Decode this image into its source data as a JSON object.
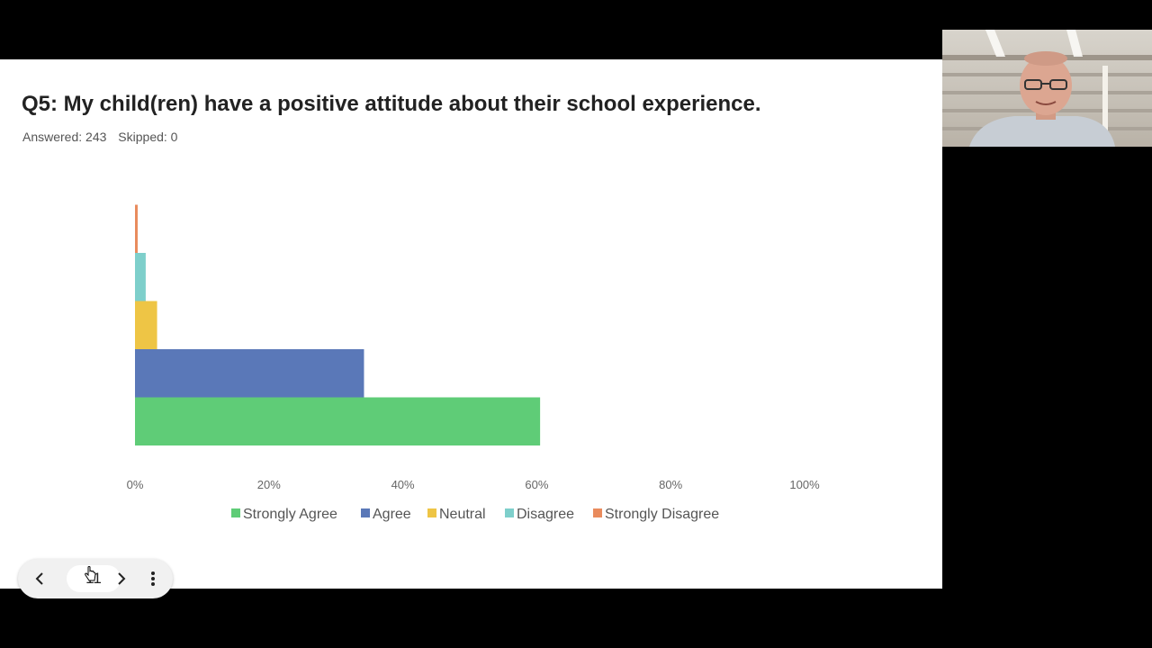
{
  "slide": {
    "title": "Q5: My child(ren) have a positive attitude about their school experience.",
    "answered": "Answered: 243",
    "skipped": "Skipped: 0"
  },
  "chart_data": {
    "type": "bar",
    "orientation": "horizontal",
    "categories": [
      "Strongly Agree",
      "Agree",
      "Neutral",
      "Disagree",
      "Strongly Disagree"
    ],
    "values": [
      60.5,
      34.2,
      3.3,
      1.6,
      0.4
    ],
    "xlim": [
      0,
      100
    ],
    "x_ticks": [
      "0%",
      "20%",
      "40%",
      "60%",
      "80%",
      "100%"
    ],
    "colors": [
      "#5fcc77",
      "#5a78b8",
      "#eec545",
      "#7ecfcb",
      "#e98b5d"
    ],
    "legend": [
      "Strongly Agree",
      "Agree",
      "Neutral",
      "Disagree",
      "Strongly Disagree"
    ],
    "legend_position": "bottom",
    "grid": false
  },
  "pager": {
    "page": "11",
    "prev_icon": "chevron-left-icon",
    "next_icon": "chevron-right-icon",
    "more_icon": "more-vertical-icon"
  },
  "video": {
    "icon": "participant-video"
  }
}
